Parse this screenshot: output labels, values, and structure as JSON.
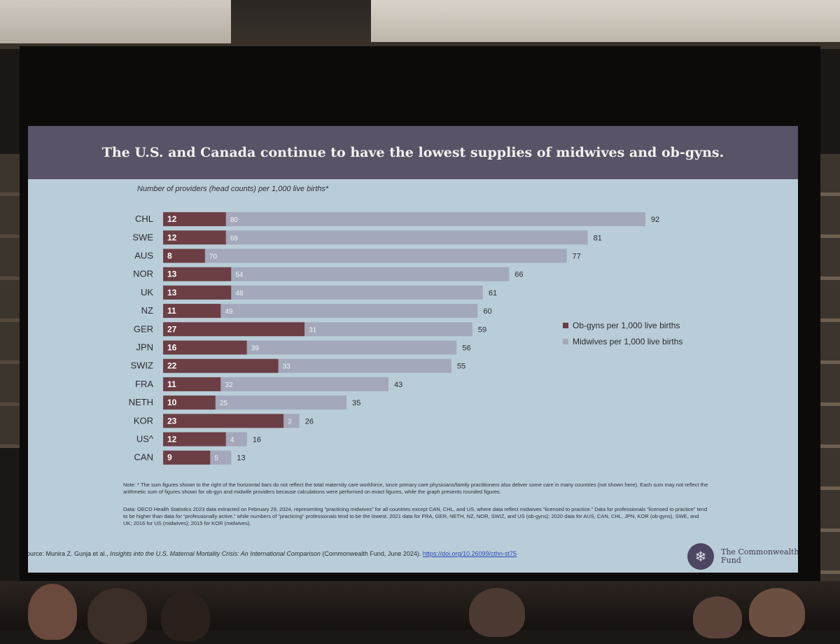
{
  "slide": {
    "title": "The U.S. and Canada continue to have the lowest supplies of midwives and ob-gyns.",
    "subtitle": "Number of providers (head counts) per 1,000 live births*",
    "note": "Note: * The sum figures shown to the right of the horizontal bars do not reflect the total maternity care workforce, since primary care physicians/family practitioners also deliver some care in many countries (not shown here). Each sum may not reflect the arithmetic sum of figures shown for ob-gyn and midwife providers because calculations were performed on exact figures, while the graph presents rounded figures.",
    "data_note": "Data: OECD Health Statistics 2023 data extracted on February 29, 2024, representing “practicing midwives” for all countries except CAN, CHL, and US, where data reflect midwives “licensed to practice.” Data for professionals “licensed to practice” tend to be higher than data for “professionally active,” while numbers of “practicing” professionals tend to be the lowest. 2021 data for FRA, GER, NETH, NZ, NOR, SWIZ, and US (ob-gyns); 2020 data for AUS, CAN, CHL, JPN, KOR (ob-gyns), SWE, and UK; 2016 for US (midwives); 2015 for KOR (midwives).",
    "source_prefix": "Source: Munira Z. Gunja et al., ",
    "source_book": "Insights into the U.S. Maternal Mortality Crisis: An International Comparison",
    "source_suffix": " (Commonwealth Fund, June 2024). ",
    "source_doi": "https://doi.org/10.26099/cthn-st75",
    "logo_text": "The Commonwealth Fund",
    "logo_icon": "snowflake-icon"
  },
  "colors": {
    "title_bar": "#5a5267",
    "background": "#b9cdd8",
    "obgyn": "#6b3f44",
    "midwife": "#a3a8bb"
  },
  "chart_data": {
    "type": "bar",
    "orientation": "horizontal",
    "stacked": true,
    "title": "The U.S. and Canada continue to have the lowest supplies of midwives and ob-gyns.",
    "xlabel": "Number of providers (head counts) per 1,000 live births*",
    "ylabel": "",
    "xlim": [
      0,
      92
    ],
    "categories": [
      "CHL",
      "SWE",
      "AUS",
      "NOR",
      "UK",
      "NZ",
      "GER",
      "JPN",
      "SWIZ",
      "FRA",
      "NETH",
      "KOR",
      "US^",
      "CAN"
    ],
    "series": [
      {
        "name": "Ob-gyns per 1,000 live births",
        "values": [
          12,
          12,
          8,
          13,
          13,
          11,
          27,
          16,
          22,
          11,
          10,
          23,
          12,
          9
        ]
      },
      {
        "name": "Midwives per 1,000 live births",
        "values": [
          80,
          69,
          70,
          54,
          48,
          49,
          31,
          39,
          33,
          32,
          25,
          2,
          4,
          5
        ]
      }
    ],
    "totals": [
      92,
      81,
      77,
      66,
      61,
      60,
      59,
      56,
      55,
      43,
      35,
      26,
      16,
      13
    ],
    "legend_position": "right"
  }
}
